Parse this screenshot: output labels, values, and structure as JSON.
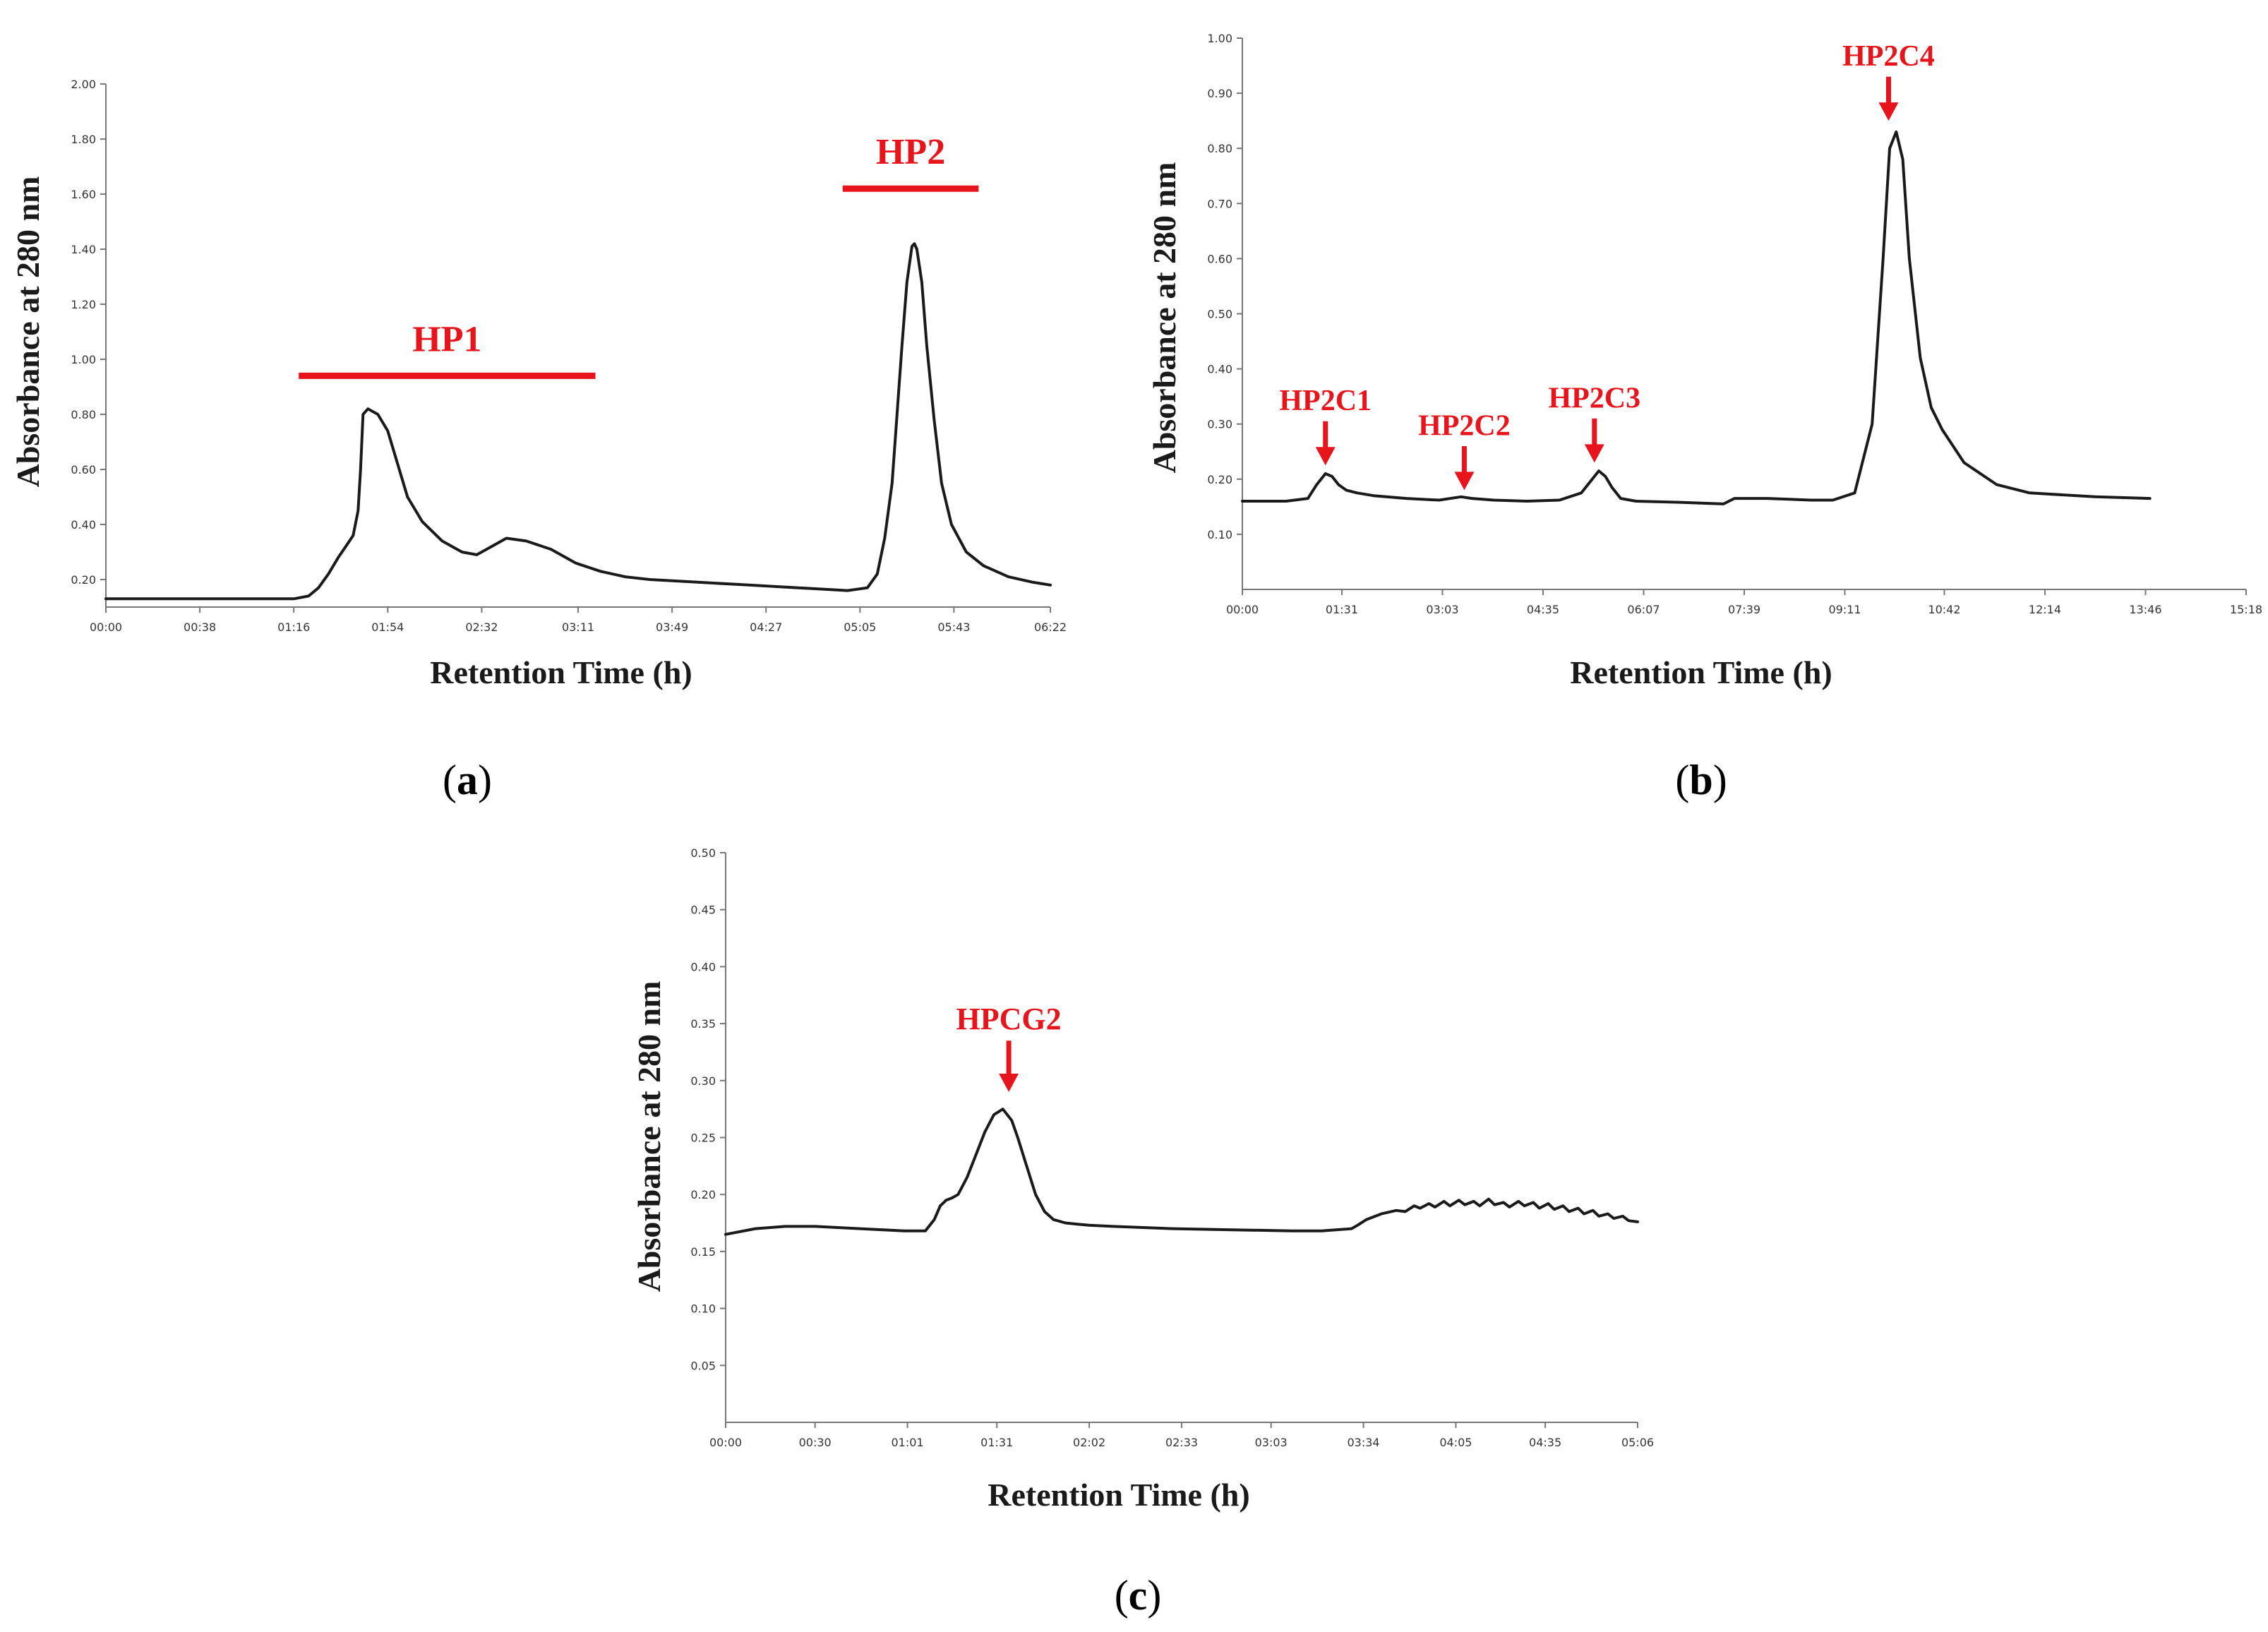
{
  "chart_data": [
    {
      "id": "a",
      "type": "line",
      "panel_label": "a",
      "xlabel": "Retention  Time (h)",
      "ylabel": "Absorbance at 280 nm",
      "xlim": [
        0,
        382
      ],
      "ylim": [
        0.1,
        2.0
      ],
      "x_ticks": [
        0,
        38,
        76,
        114,
        152,
        191,
        229,
        267,
        305,
        343,
        382
      ],
      "x_tick_labels": [
        "00:00",
        "00:38",
        "01:16",
        "01:54",
        "02:32",
        "03:11",
        "03:49",
        "04:27",
        "05:05",
        "05:43",
        "06:22"
      ],
      "y_ticks": [
        0.2,
        0.4,
        0.6,
        0.8,
        1.0,
        1.2,
        1.4,
        1.6,
        1.8,
        2.0
      ],
      "y_tick_labels": [
        "0.20",
        "0.40",
        "0.60",
        "0.80",
        "1.00",
        "1.20",
        "1.40",
        "1.60",
        "1.80",
        "2.00"
      ],
      "series": [
        {
          "name": "A280",
          "x": [
            0,
            20,
            40,
            60,
            76,
            82,
            86,
            90,
            94,
            97,
            100,
            102,
            103,
            104,
            106,
            110,
            114,
            118,
            122,
            128,
            136,
            144,
            150,
            156,
            162,
            170,
            180,
            190,
            200,
            210,
            220,
            240,
            260,
            280,
            300,
            308,
            312,
            315,
            318,
            320,
            322,
            324,
            326,
            327,
            328,
            330,
            332,
            335,
            338,
            342,
            348,
            355,
            365,
            375,
            382
          ],
          "values": [
            0.13,
            0.13,
            0.13,
            0.13,
            0.13,
            0.14,
            0.17,
            0.22,
            0.28,
            0.32,
            0.36,
            0.45,
            0.6,
            0.8,
            0.82,
            0.8,
            0.74,
            0.62,
            0.5,
            0.41,
            0.34,
            0.3,
            0.29,
            0.32,
            0.35,
            0.34,
            0.31,
            0.26,
            0.23,
            0.21,
            0.2,
            0.19,
            0.18,
            0.17,
            0.16,
            0.17,
            0.22,
            0.35,
            0.55,
            0.8,
            1.05,
            1.28,
            1.41,
            1.42,
            1.4,
            1.28,
            1.05,
            0.78,
            0.55,
            0.4,
            0.3,
            0.25,
            0.21,
            0.19,
            0.18
          ]
        }
      ],
      "annotations": [
        {
          "text": "HP1",
          "type": "bar",
          "x_start": 78,
          "x_end": 198,
          "y": 0.94,
          "label_y": 1.03
        },
        {
          "text": "HP2",
          "type": "bar",
          "x_start": 298,
          "x_end": 353,
          "y": 1.62,
          "label_y": 1.71
        }
      ]
    },
    {
      "id": "b",
      "type": "line",
      "panel_label": "b",
      "xlabel": "Retention  Time (h)",
      "ylabel": "Absorbance at 280 nm",
      "xlim": [
        0,
        918
      ],
      "ylim": [
        0.0,
        1.0
      ],
      "x_ticks": [
        0,
        91,
        183,
        275,
        367,
        459,
        551,
        642,
        734,
        826,
        918
      ],
      "x_tick_labels": [
        "00:00",
        "01:31",
        "03:03",
        "04:35",
        "06:07",
        "07:39",
        "09:11",
        "10:42",
        "12:14",
        "13:46",
        "15:18"
      ],
      "y_ticks": [
        0.1,
        0.2,
        0.3,
        0.4,
        0.5,
        0.6,
        0.7,
        0.8,
        0.9,
        1.0
      ],
      "y_tick_labels": [
        "0.10",
        "0.20",
        "0.30",
        "0.40",
        "0.50",
        "0.60",
        "0.70",
        "0.80",
        "0.90",
        "1.00"
      ],
      "series": [
        {
          "name": "A280",
          "x": [
            0,
            40,
            60,
            68,
            76,
            82,
            88,
            95,
            105,
            120,
            150,
            180,
            200,
            210,
            230,
            260,
            290,
            310,
            320,
            326,
            332,
            338,
            346,
            360,
            400,
            440,
            450,
            480,
            520,
            540,
            560,
            576,
            586,
            592,
            598,
            604,
            610,
            620,
            630,
            640,
            660,
            690,
            720,
            780,
            830
          ],
          "values": [
            0.16,
            0.16,
            0.165,
            0.19,
            0.21,
            0.205,
            0.19,
            0.18,
            0.175,
            0.17,
            0.165,
            0.162,
            0.168,
            0.165,
            0.162,
            0.16,
            0.162,
            0.175,
            0.2,
            0.215,
            0.205,
            0.185,
            0.165,
            0.16,
            0.158,
            0.155,
            0.165,
            0.165,
            0.162,
            0.162,
            0.175,
            0.3,
            0.6,
            0.8,
            0.83,
            0.78,
            0.6,
            0.42,
            0.33,
            0.29,
            0.23,
            0.19,
            0.175,
            0.168,
            0.165
          ]
        }
      ],
      "annotations": [
        {
          "text": "HP2C1",
          "type": "arrow",
          "x": 76,
          "y_tip": 0.225,
          "y_tail": 0.305,
          "label_y": 0.325
        },
        {
          "text": "HP2C2",
          "type": "arrow",
          "x": 203,
          "y_tip": 0.18,
          "y_tail": 0.26,
          "label_y": 0.28
        },
        {
          "text": "HP2C3",
          "type": "arrow",
          "x": 322,
          "y_tip": 0.23,
          "y_tail": 0.31,
          "label_y": 0.33
        },
        {
          "text": "HP2C4",
          "type": "arrow",
          "x": 591,
          "y_tip": 0.85,
          "y_tail": 0.93,
          "label_y": 0.95
        }
      ]
    },
    {
      "id": "c",
      "type": "line",
      "panel_label": "c",
      "xlabel": "Retention  Time (h)",
      "ylabel": "Absorbance at 280 nm",
      "xlim": [
        0,
        306
      ],
      "ylim": [
        0.0,
        0.5
      ],
      "x_ticks": [
        0,
        30,
        61,
        91,
        122,
        153,
        183,
        214,
        245,
        275,
        306
      ],
      "x_tick_labels": [
        "00:00",
        "00:30",
        "01:01",
        "01:31",
        "02:02",
        "02:33",
        "03:03",
        "03:34",
        "04:05",
        "04:35",
        "05:06"
      ],
      "y_ticks": [
        0.05,
        0.1,
        0.15,
        0.2,
        0.25,
        0.3,
        0.35,
        0.4,
        0.45,
        0.5
      ],
      "y_tick_labels": [
        "0.05",
        "0.10",
        "0.15",
        "0.20",
        "0.25",
        "0.30",
        "0.35",
        "0.40",
        "0.45",
        "0.50"
      ],
      "series": [
        {
          "name": "A280",
          "x": [
            0,
            10,
            20,
            30,
            45,
            60,
            67,
            70,
            72,
            74,
            76,
            78,
            81,
            84,
            87,
            90,
            93,
            96,
            98,
            101,
            104,
            107,
            110,
            114,
            118,
            122,
            130,
            150,
            170,
            190,
            200,
            210,
            212,
            215,
            220,
            225,
            228,
            231,
            233,
            236,
            238,
            241,
            243,
            246,
            248,
            251,
            253,
            256,
            258,
            261,
            263,
            266,
            268,
            271,
            273,
            276,
            278,
            281,
            283,
            286,
            288,
            291,
            293,
            296,
            298,
            301,
            303,
            306
          ],
          "values": [
            0.165,
            0.17,
            0.172,
            0.172,
            0.17,
            0.168,
            0.168,
            0.178,
            0.19,
            0.195,
            0.197,
            0.2,
            0.215,
            0.235,
            0.255,
            0.27,
            0.275,
            0.265,
            0.25,
            0.225,
            0.2,
            0.185,
            0.178,
            0.175,
            0.174,
            0.173,
            0.172,
            0.17,
            0.169,
            0.168,
            0.168,
            0.17,
            0.173,
            0.178,
            0.183,
            0.186,
            0.185,
            0.19,
            0.188,
            0.192,
            0.189,
            0.194,
            0.19,
            0.195,
            0.191,
            0.194,
            0.19,
            0.196,
            0.191,
            0.193,
            0.189,
            0.194,
            0.19,
            0.193,
            0.188,
            0.192,
            0.187,
            0.19,
            0.185,
            0.188,
            0.183,
            0.186,
            0.181,
            0.183,
            0.179,
            0.181,
            0.177,
            0.176
          ]
        }
      ],
      "annotations": [
        {
          "text": "HPCG2",
          "type": "arrow",
          "x": 95,
          "y_tip": 0.29,
          "y_tail": 0.335,
          "label_y": 0.345
        }
      ]
    }
  ]
}
